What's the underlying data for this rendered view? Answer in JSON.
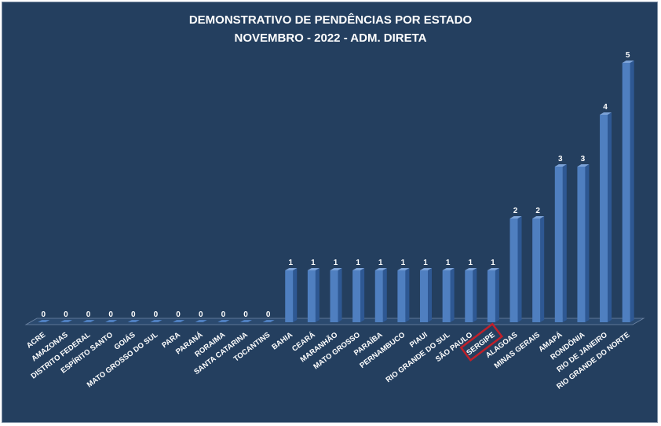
{
  "chart_data": {
    "type": "bar",
    "title": "DEMONSTRATIVO DE PENDÊNCIAS POR ESTADO",
    "subtitle": "NOVEMBRO - 2022 - ADM. DIRETA",
    "categories": [
      "ACRE",
      "AMAZONAS",
      "DISTRITO FEDERAL",
      "ESPÍRITO SANTO",
      "GOIÁS",
      "MATO GROSSO DO SUL",
      "PARA",
      "PARANÁ",
      "RORAIMA",
      "SANTA CATARINA",
      "TOCANTINS",
      "BAHIA",
      "CEARÁ",
      "MARANHÃO",
      "MATO GROSSO",
      "PARAÍBA",
      "PERNAMBUCO",
      "PIAUI",
      "RIO GRANDE DO SUL",
      "SÃO PAULO",
      "SERGIPE",
      "ALAGOAS",
      "MINAS GERAIS",
      "AMAPÁ",
      "RONDÔNIA",
      "RIO DE JANEIRO",
      "RIO GRANDE DO NORTE"
    ],
    "values": [
      0,
      0,
      0,
      0,
      0,
      0,
      0,
      0,
      0,
      0,
      0,
      1,
      1,
      1,
      1,
      1,
      1,
      1,
      1,
      1,
      1,
      2,
      2,
      3,
      3,
      4,
      5
    ],
    "ylim": [
      0,
      5
    ],
    "grid": false,
    "data_labels": true,
    "highlighted_category": "SERGIPE",
    "colors": {
      "background": "#243f5f",
      "bar_front": "#4f7fc0",
      "bar_side": "#2e5893",
      "bar_top": "#7ca3d8",
      "text": "#ffffff",
      "highlight_box": "#c0202a"
    }
  }
}
